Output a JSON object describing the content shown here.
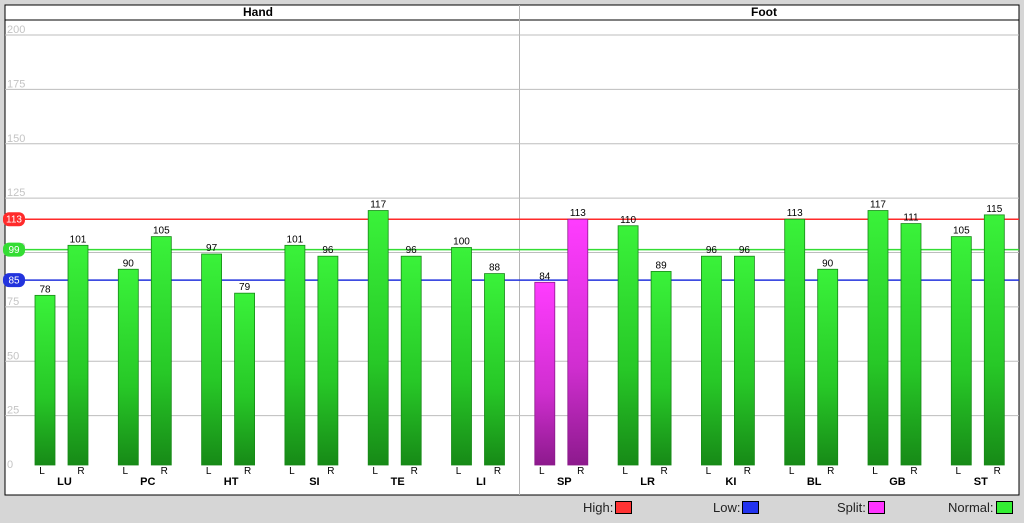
{
  "chart_data": {
    "type": "bar",
    "panels": [
      "Hand",
      "Foot"
    ],
    "categories": [
      "LU",
      "PC",
      "HT",
      "SI",
      "TE",
      "LI",
      "SP",
      "LR",
      "KI",
      "BL",
      "GB",
      "ST"
    ],
    "category_panel": [
      "Hand",
      "Hand",
      "Hand",
      "Hand",
      "Hand",
      "Hand",
      "Foot",
      "Foot",
      "Foot",
      "Foot",
      "Foot",
      "Foot"
    ],
    "sides": [
      "L",
      "R"
    ],
    "series": [
      {
        "name": "L",
        "values": [
          78,
          90,
          97,
          101,
          117,
          100,
          84,
          110,
          96,
          113,
          117,
          105
        ]
      },
      {
        "name": "R",
        "values": [
          101,
          105,
          79,
          96,
          96,
          88,
          113,
          89,
          96,
          90,
          111,
          115
        ]
      }
    ],
    "bar_status": {
      "L": [
        "normal",
        "normal",
        "normal",
        "normal",
        "normal",
        "normal",
        "split",
        "normal",
        "normal",
        "normal",
        "normal",
        "normal"
      ],
      "R": [
        "normal",
        "normal",
        "normal",
        "normal",
        "normal",
        "normal",
        "split",
        "normal",
        "normal",
        "normal",
        "normal",
        "normal"
      ]
    },
    "ylim": [
      0,
      200
    ],
    "yticks": [
      0,
      25,
      50,
      75,
      100,
      125,
      150,
      175,
      200
    ],
    "grid": true,
    "thresholds": [
      {
        "key": "high",
        "value": 113,
        "label": "113",
        "color": "#ff2a2a"
      },
      {
        "key": "mid",
        "value": 99,
        "label": "99",
        "color": "#33dd33"
      },
      {
        "key": "low",
        "value": 85,
        "label": "85",
        "color": "#2233dd"
      }
    ],
    "legend": [
      {
        "key": "high",
        "label": "High:",
        "color": "#ff3333"
      },
      {
        "key": "low",
        "label": "Low:",
        "color": "#2233ee"
      },
      {
        "key": "split",
        "label": "Split:",
        "color": "#ff33ff"
      },
      {
        "key": "normal",
        "label": "Normal:",
        "color": "#33ee33"
      }
    ],
    "legend_placement": "bottom-right",
    "colors": {
      "normal": "#33ee33",
      "split": "#ff33ff"
    }
  }
}
